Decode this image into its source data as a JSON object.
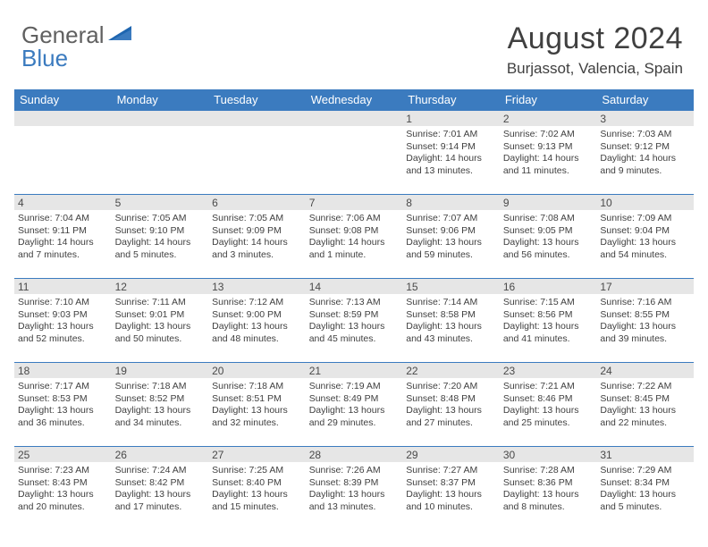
{
  "logo": {
    "part1": "General",
    "part2": "Blue"
  },
  "title": "August 2024",
  "location": "Burjassot, Valencia, Spain",
  "colors": {
    "accent": "#3b7bbf",
    "band": "#e6e6e6",
    "text": "#404040",
    "white": "#ffffff"
  },
  "dayNames": [
    "Sunday",
    "Monday",
    "Tuesday",
    "Wednesday",
    "Thursday",
    "Friday",
    "Saturday"
  ],
  "weeks": [
    [
      {
        "day": "",
        "sunrise": "",
        "sunset": "",
        "daylight": ""
      },
      {
        "day": "",
        "sunrise": "",
        "sunset": "",
        "daylight": ""
      },
      {
        "day": "",
        "sunrise": "",
        "sunset": "",
        "daylight": ""
      },
      {
        "day": "",
        "sunrise": "",
        "sunset": "",
        "daylight": ""
      },
      {
        "day": "1",
        "sunrise": "Sunrise: 7:01 AM",
        "sunset": "Sunset: 9:14 PM",
        "daylight": "Daylight: 14 hours and 13 minutes."
      },
      {
        "day": "2",
        "sunrise": "Sunrise: 7:02 AM",
        "sunset": "Sunset: 9:13 PM",
        "daylight": "Daylight: 14 hours and 11 minutes."
      },
      {
        "day": "3",
        "sunrise": "Sunrise: 7:03 AM",
        "sunset": "Sunset: 9:12 PM",
        "daylight": "Daylight: 14 hours and 9 minutes."
      }
    ],
    [
      {
        "day": "4",
        "sunrise": "Sunrise: 7:04 AM",
        "sunset": "Sunset: 9:11 PM",
        "daylight": "Daylight: 14 hours and 7 minutes."
      },
      {
        "day": "5",
        "sunrise": "Sunrise: 7:05 AM",
        "sunset": "Sunset: 9:10 PM",
        "daylight": "Daylight: 14 hours and 5 minutes."
      },
      {
        "day": "6",
        "sunrise": "Sunrise: 7:05 AM",
        "sunset": "Sunset: 9:09 PM",
        "daylight": "Daylight: 14 hours and 3 minutes."
      },
      {
        "day": "7",
        "sunrise": "Sunrise: 7:06 AM",
        "sunset": "Sunset: 9:08 PM",
        "daylight": "Daylight: 14 hours and 1 minute."
      },
      {
        "day": "8",
        "sunrise": "Sunrise: 7:07 AM",
        "sunset": "Sunset: 9:06 PM",
        "daylight": "Daylight: 13 hours and 59 minutes."
      },
      {
        "day": "9",
        "sunrise": "Sunrise: 7:08 AM",
        "sunset": "Sunset: 9:05 PM",
        "daylight": "Daylight: 13 hours and 56 minutes."
      },
      {
        "day": "10",
        "sunrise": "Sunrise: 7:09 AM",
        "sunset": "Sunset: 9:04 PM",
        "daylight": "Daylight: 13 hours and 54 minutes."
      }
    ],
    [
      {
        "day": "11",
        "sunrise": "Sunrise: 7:10 AM",
        "sunset": "Sunset: 9:03 PM",
        "daylight": "Daylight: 13 hours and 52 minutes."
      },
      {
        "day": "12",
        "sunrise": "Sunrise: 7:11 AM",
        "sunset": "Sunset: 9:01 PM",
        "daylight": "Daylight: 13 hours and 50 minutes."
      },
      {
        "day": "13",
        "sunrise": "Sunrise: 7:12 AM",
        "sunset": "Sunset: 9:00 PM",
        "daylight": "Daylight: 13 hours and 48 minutes."
      },
      {
        "day": "14",
        "sunrise": "Sunrise: 7:13 AM",
        "sunset": "Sunset: 8:59 PM",
        "daylight": "Daylight: 13 hours and 45 minutes."
      },
      {
        "day": "15",
        "sunrise": "Sunrise: 7:14 AM",
        "sunset": "Sunset: 8:58 PM",
        "daylight": "Daylight: 13 hours and 43 minutes."
      },
      {
        "day": "16",
        "sunrise": "Sunrise: 7:15 AM",
        "sunset": "Sunset: 8:56 PM",
        "daylight": "Daylight: 13 hours and 41 minutes."
      },
      {
        "day": "17",
        "sunrise": "Sunrise: 7:16 AM",
        "sunset": "Sunset: 8:55 PM",
        "daylight": "Daylight: 13 hours and 39 minutes."
      }
    ],
    [
      {
        "day": "18",
        "sunrise": "Sunrise: 7:17 AM",
        "sunset": "Sunset: 8:53 PM",
        "daylight": "Daylight: 13 hours and 36 minutes."
      },
      {
        "day": "19",
        "sunrise": "Sunrise: 7:18 AM",
        "sunset": "Sunset: 8:52 PM",
        "daylight": "Daylight: 13 hours and 34 minutes."
      },
      {
        "day": "20",
        "sunrise": "Sunrise: 7:18 AM",
        "sunset": "Sunset: 8:51 PM",
        "daylight": "Daylight: 13 hours and 32 minutes."
      },
      {
        "day": "21",
        "sunrise": "Sunrise: 7:19 AM",
        "sunset": "Sunset: 8:49 PM",
        "daylight": "Daylight: 13 hours and 29 minutes."
      },
      {
        "day": "22",
        "sunrise": "Sunrise: 7:20 AM",
        "sunset": "Sunset: 8:48 PM",
        "daylight": "Daylight: 13 hours and 27 minutes."
      },
      {
        "day": "23",
        "sunrise": "Sunrise: 7:21 AM",
        "sunset": "Sunset: 8:46 PM",
        "daylight": "Daylight: 13 hours and 25 minutes."
      },
      {
        "day": "24",
        "sunrise": "Sunrise: 7:22 AM",
        "sunset": "Sunset: 8:45 PM",
        "daylight": "Daylight: 13 hours and 22 minutes."
      }
    ],
    [
      {
        "day": "25",
        "sunrise": "Sunrise: 7:23 AM",
        "sunset": "Sunset: 8:43 PM",
        "daylight": "Daylight: 13 hours and 20 minutes."
      },
      {
        "day": "26",
        "sunrise": "Sunrise: 7:24 AM",
        "sunset": "Sunset: 8:42 PM",
        "daylight": "Daylight: 13 hours and 17 minutes."
      },
      {
        "day": "27",
        "sunrise": "Sunrise: 7:25 AM",
        "sunset": "Sunset: 8:40 PM",
        "daylight": "Daylight: 13 hours and 15 minutes."
      },
      {
        "day": "28",
        "sunrise": "Sunrise: 7:26 AM",
        "sunset": "Sunset: 8:39 PM",
        "daylight": "Daylight: 13 hours and 13 minutes."
      },
      {
        "day": "29",
        "sunrise": "Sunrise: 7:27 AM",
        "sunset": "Sunset: 8:37 PM",
        "daylight": "Daylight: 13 hours and 10 minutes."
      },
      {
        "day": "30",
        "sunrise": "Sunrise: 7:28 AM",
        "sunset": "Sunset: 8:36 PM",
        "daylight": "Daylight: 13 hours and 8 minutes."
      },
      {
        "day": "31",
        "sunrise": "Sunrise: 7:29 AM",
        "sunset": "Sunset: 8:34 PM",
        "daylight": "Daylight: 13 hours and 5 minutes."
      }
    ]
  ]
}
